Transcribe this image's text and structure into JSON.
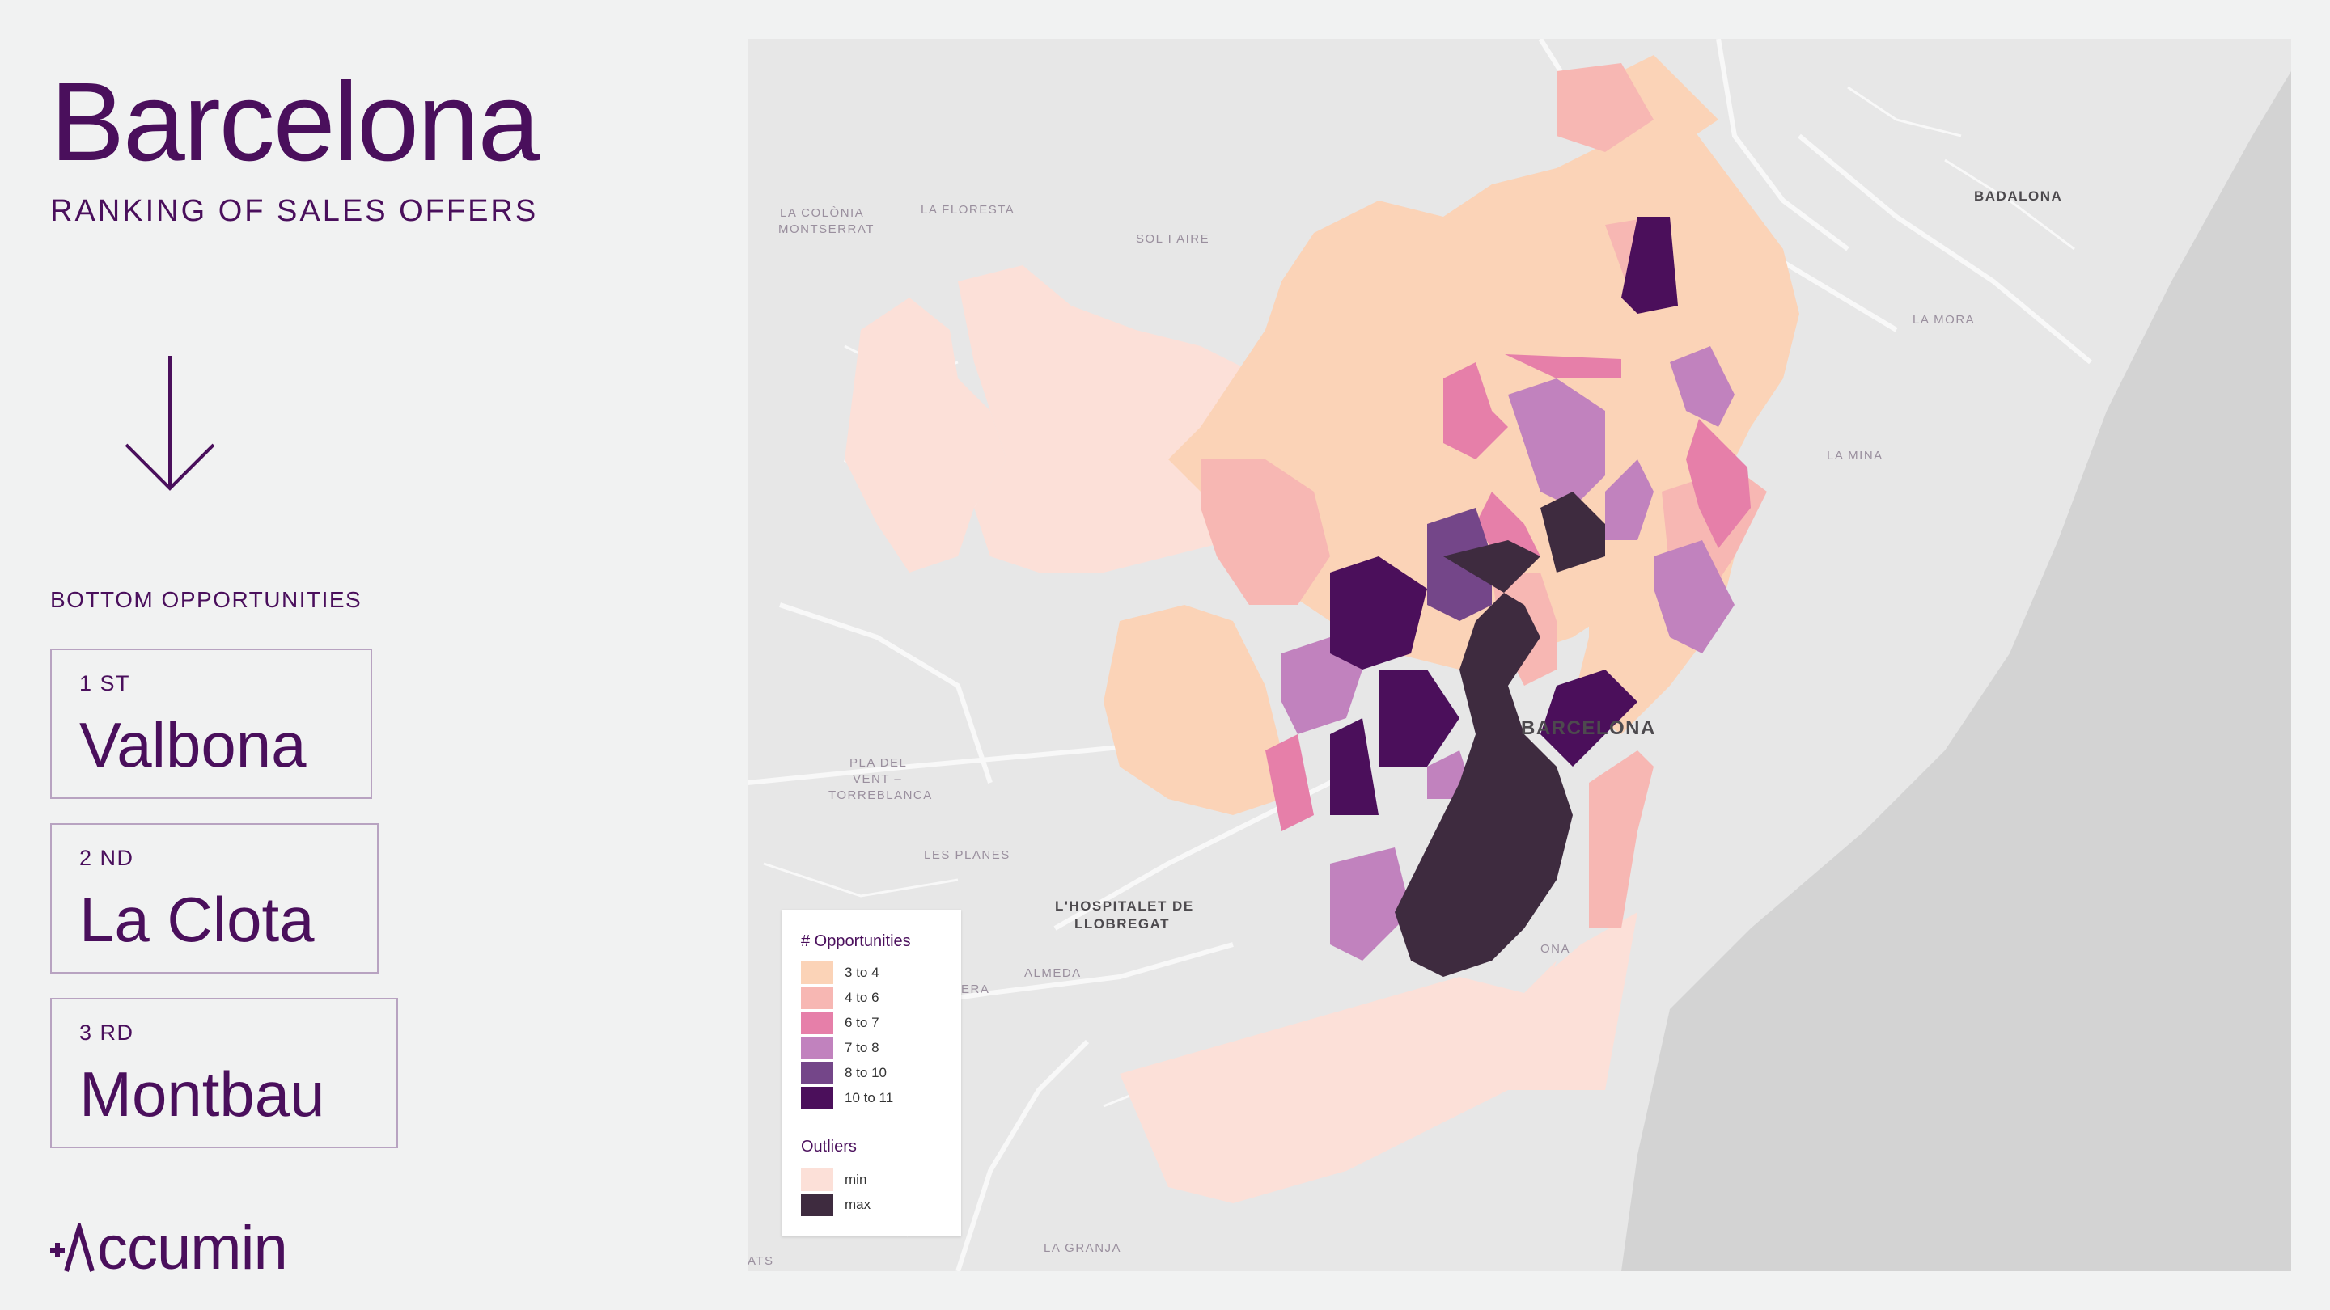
{
  "header": {
    "title": "Barcelona",
    "subtitle": "RANKING OF SALES OFFERS"
  },
  "ranking": {
    "section_label": "BOTTOM OPPORTUNITIES",
    "items": [
      {
        "ordinal": "1 ST",
        "name": "Valbona"
      },
      {
        "ordinal": "2 ND",
        "name": "La Clota"
      },
      {
        "ordinal": "3 RD",
        "name": "Montbau"
      }
    ]
  },
  "logo": {
    "text": "ccumin"
  },
  "map": {
    "place_labels": [
      "LA COLÒNIA",
      "MONTSERRAT",
      "LA FLORESTA",
      "SOL I AIRE",
      "BADALONA",
      "LA MORA",
      "LA MINA",
      "PLA DEL",
      "VENT –",
      "TORREBLANCA",
      "LES PLANES",
      "L'HOSPITALET DE",
      "LLOBREGAT",
      "ALMEDA",
      "LA GRANJA",
      "BARCELONA",
      "ERA",
      "ATS",
      "ONA"
    ],
    "colors": {
      "land": "#e7e7e7",
      "roads": "#f7f7f7",
      "sea": "#d3d3d3",
      "outlier_min": "#fce0d8",
      "outlier_max": "#3e2b3f"
    }
  },
  "legend": {
    "title": "# Opportunities",
    "bins": [
      {
        "label": "3 to 4",
        "color": "#fbd3b7"
      },
      {
        "label": "4 to 6",
        "color": "#f7b7b3"
      },
      {
        "label": "6 to 7",
        "color": "#e67fa9"
      },
      {
        "label": "7 to 8",
        "color": "#c182be"
      },
      {
        "label": "8 to 10",
        "color": "#744689"
      },
      {
        "label": "10 to 11",
        "color": "#4b0f5b"
      }
    ],
    "outliers_title": "Outliers",
    "outliers": [
      {
        "label": "min",
        "color": "#fce0d8"
      },
      {
        "label": "max",
        "color": "#3e2b3f"
      }
    ]
  }
}
